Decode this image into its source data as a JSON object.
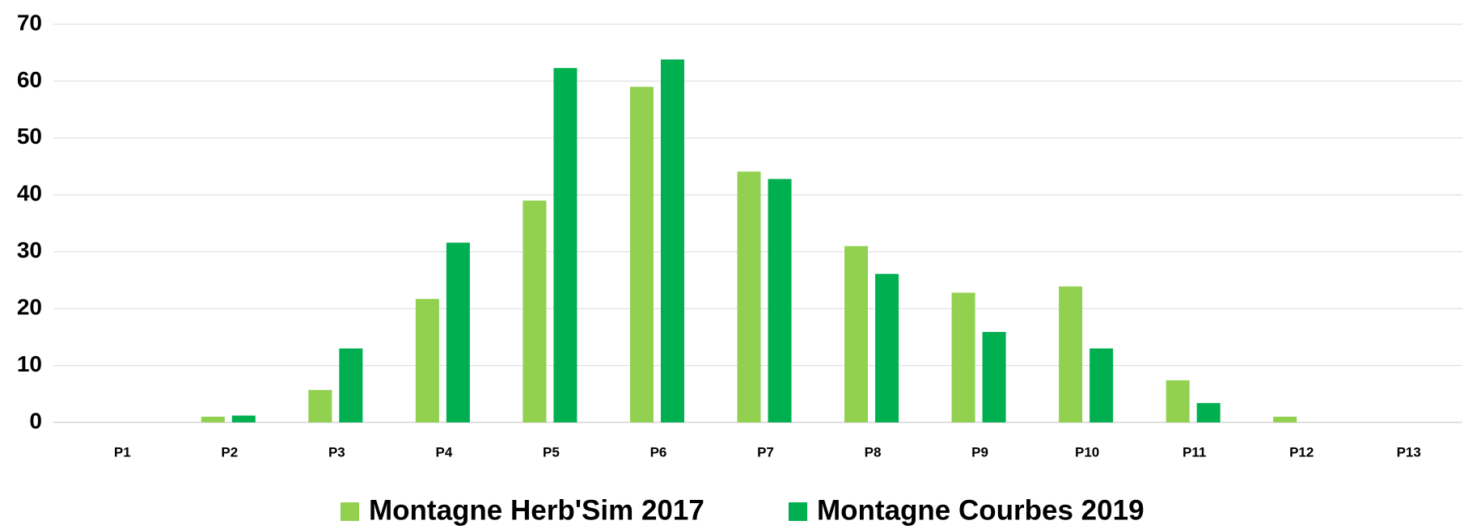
{
  "chart_data": {
    "type": "bar",
    "categories": [
      "P1",
      "P2",
      "P3",
      "P4",
      "P5",
      "P6",
      "P7",
      "P8",
      "P9",
      "P10",
      "P11",
      "P12",
      "P13"
    ],
    "series": [
      {
        "name": "Montagne Herb'Sim 2017",
        "color": "#92d050",
        "values": [
          0,
          1,
          5.7,
          21.7,
          39,
          59,
          44.1,
          31,
          22.8,
          23.9,
          7.4,
          1,
          0
        ]
      },
      {
        "name": "Montagne Courbes 2019",
        "color": "#00b050",
        "values": [
          0,
          1.2,
          13,
          31.6,
          62.3,
          63.8,
          42.8,
          26.1,
          15.9,
          13,
          3.4,
          0,
          0
        ]
      }
    ],
    "ylim": [
      0,
      70
    ],
    "yticks": [
      0,
      10,
      20,
      30,
      40,
      50,
      60,
      70
    ],
    "grid": true,
    "legend": "bottom"
  }
}
